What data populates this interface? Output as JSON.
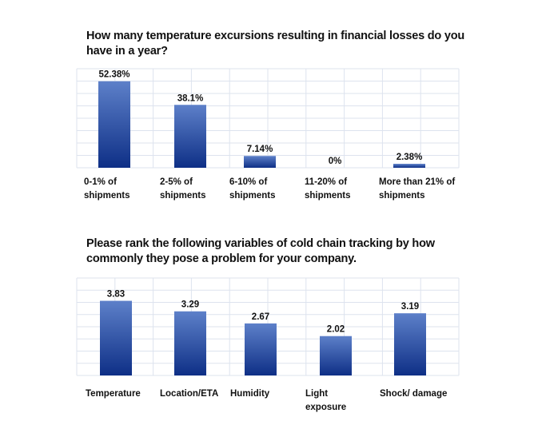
{
  "chart_data": [
    {
      "type": "bar",
      "title": "How many temperature excursions resulting in financial losses do you have in a year?",
      "categories": [
        [
          "0-1% of",
          "shipments"
        ],
        [
          "2-5% of",
          "shipments"
        ],
        [
          "6-10% of",
          "shipments"
        ],
        [
          "11-20% of",
          "shipments"
        ],
        [
          "More than 21% of",
          "shipments"
        ]
      ],
      "values": [
        52.38,
        38.1,
        7.14,
        0,
        2.38
      ],
      "data_labels": [
        "52.38%",
        "38.1%",
        "7.14%",
        "0%",
        "2.38%"
      ],
      "ylim": [
        0,
        60
      ],
      "grid": true,
      "bar_color_top": "#5d80c9",
      "bar_color_bottom": "#0e2f86"
    },
    {
      "type": "bar",
      "title": "Please rank the following variables of cold chain tracking by how commonly they pose a problem for your company.",
      "categories": [
        [
          "Temperature"
        ],
        [
          "Location/ETA"
        ],
        [
          "Humidity"
        ],
        [
          "Light",
          "exposure"
        ],
        [
          "Shock/ damage"
        ]
      ],
      "values": [
        3.83,
        3.29,
        2.67,
        2.02,
        3.19
      ],
      "data_labels": [
        "3.83",
        "3.29",
        "2.67",
        "2.02",
        "3.19"
      ],
      "ylim": [
        0,
        5
      ],
      "grid": true,
      "bar_color_top": "#5d80c9",
      "bar_color_bottom": "#0e2f86"
    }
  ]
}
